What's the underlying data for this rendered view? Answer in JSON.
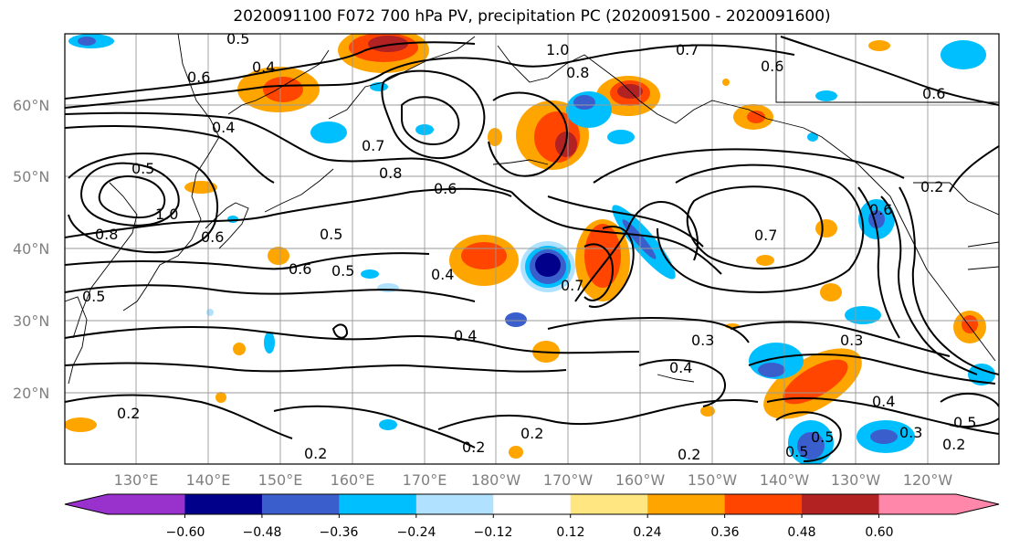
{
  "title": "2020091100 F072 700 hPa PV, precipitation PC (2020091500 - 2020091600)",
  "lat_labels": [
    "60°N",
    "50°N",
    "40°N",
    "30°N",
    "20°N"
  ],
  "lon_labels": [
    "130°E",
    "140°E",
    "150°E",
    "160°E",
    "170°E",
    "180°W",
    "170°W",
    "160°W",
    "150°W",
    "140°W",
    "130°W",
    "120°W"
  ],
  "colorbar": {
    "tick_labels": [
      "−0.60",
      "−0.48",
      "−0.36",
      "−0.24",
      "−0.12",
      "0.12",
      "0.24",
      "0.36",
      "0.48",
      "0.60"
    ],
    "colors": [
      "#9932cc",
      "#00008b",
      "#3a5fcd",
      "#00bfff",
      "#b0e2ff",
      "#ffffff",
      "#ffe680",
      "#ffa500",
      "#ff4500",
      "#b22222",
      "#ff88aa"
    ]
  },
  "contour_labels": [
    "0.4",
    "0.6",
    "0.4",
    "0.5",
    "1.0",
    "0.8",
    "0.7",
    "0.8",
    "0.6",
    "0.6",
    "0.7",
    "0.5",
    "0.8",
    "0.6",
    "1.0",
    "0.5",
    "0.6",
    "0.5",
    "0.4",
    "0.7",
    "0.7",
    "0.2",
    "0.6",
    "0.4",
    "0.3",
    "0.4",
    "0.3",
    "0.2",
    "0.2",
    "0.2",
    "0.2",
    "0.5",
    "0.4",
    "0.3",
    "0.5",
    "0.2",
    "0.2",
    "0.6",
    "0.5",
    "0.5"
  ]
}
